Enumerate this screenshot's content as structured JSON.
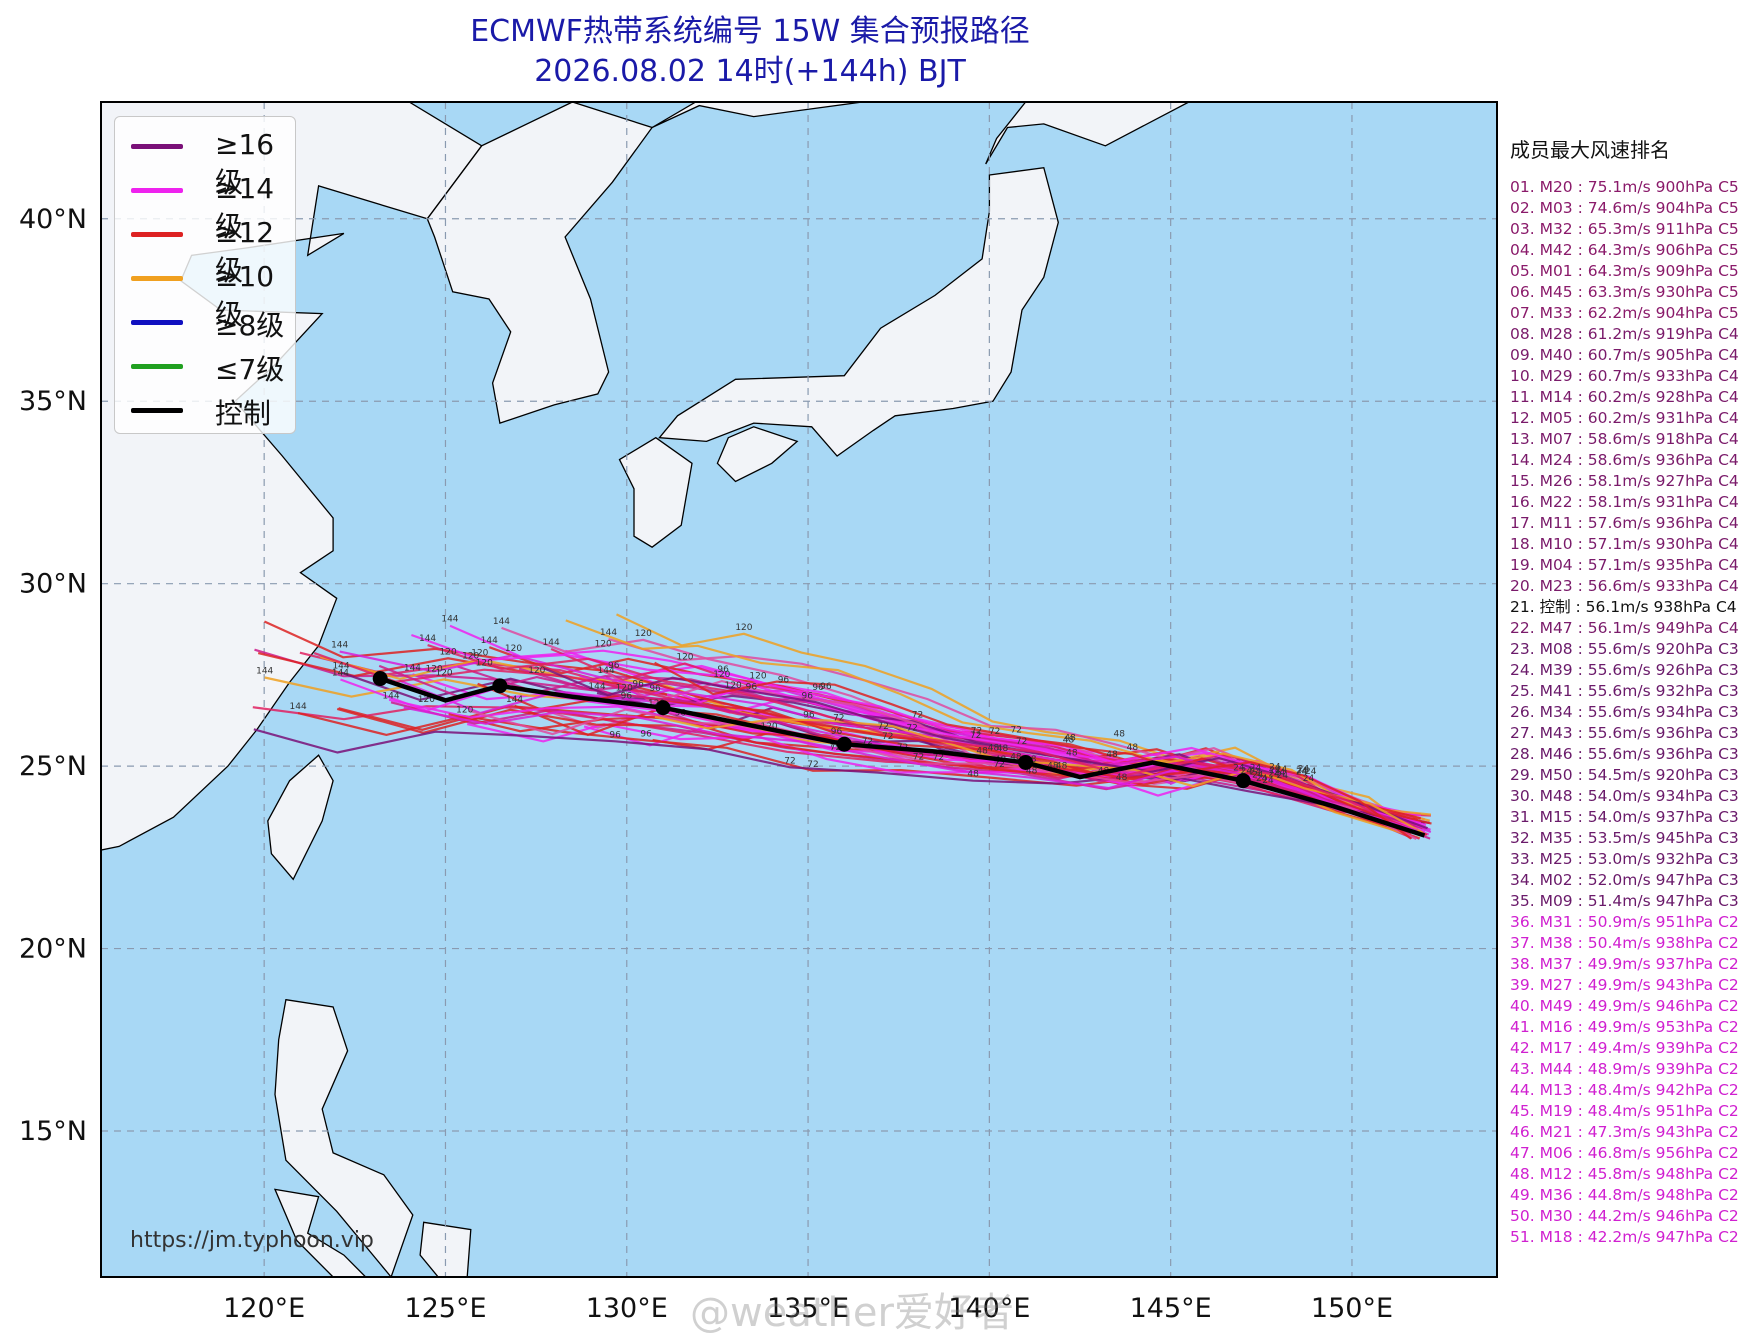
{
  "title": {
    "line1": "ECMWF热带系统编号 15W 集合预报路径",
    "line2": "2026.08.02 14时(+144h) BJT"
  },
  "colors": {
    "sea": "#a8d8f5",
    "land": "#f2f4f8",
    "coast": "#000000",
    "grid": "#8a9ab0",
    "title": "#1a1aa8",
    "c5": "#8a1a6a",
    "c4": "#6a1a6a",
    "c3": "#6a1a6a",
    "c2": "#d020d0"
  },
  "legend": [
    {
      "label": "≥16级",
      "color": "#7a1078"
    },
    {
      "label": "≥14级",
      "color": "#ee22ee"
    },
    {
      "label": "≥12级",
      "color": "#dd2222"
    },
    {
      "label": "≥10级",
      "color": "#f0a020"
    },
    {
      "label": "≥8级",
      "color": "#1010c0"
    },
    {
      "label": "≤7级",
      "color": "#20a020"
    },
    {
      "label": "控制",
      "color": "#000000"
    }
  ],
  "map": {
    "lon_range": [
      115.5,
      154
    ],
    "lat_range": [
      11,
      43.2
    ],
    "lon_ticks": [
      {
        "value": 120,
        "label": "120°E"
      },
      {
        "value": 125,
        "label": "125°E"
      },
      {
        "value": 130,
        "label": "130°E"
      },
      {
        "value": 135,
        "label": "135°E"
      },
      {
        "value": 140,
        "label": "140°E"
      },
      {
        "value": 145,
        "label": "145°E"
      },
      {
        "value": 150,
        "label": "150°E"
      }
    ],
    "lat_ticks": [
      {
        "value": 15,
        "label": "15°N"
      },
      {
        "value": 20,
        "label": "20°N"
      },
      {
        "value": 25,
        "label": "25°N"
      },
      {
        "value": 30,
        "label": "30°N"
      },
      {
        "value": 35,
        "label": "35°N"
      },
      {
        "value": 40,
        "label": "40°N"
      }
    ],
    "grid": true
  },
  "control_track": {
    "name": "控制",
    "points": [
      [
        152,
        23.1
      ],
      [
        149.5,
        23.9
      ],
      [
        147,
        24.6
      ],
      [
        144.5,
        25.1
      ],
      [
        142.5,
        24.7
      ],
      [
        141,
        25.1
      ],
      [
        138.5,
        25.4
      ],
      [
        136,
        25.6
      ],
      [
        133.5,
        26.1
      ],
      [
        131,
        26.6
      ],
      [
        128.5,
        26.9
      ],
      [
        126.5,
        27.2
      ],
      [
        125,
        26.8
      ],
      [
        123.2,
        27.4
      ]
    ],
    "markers": [
      {
        "lon": 147,
        "lat": 24.6,
        "hour": "24"
      },
      {
        "lon": 141,
        "lat": 25.1,
        "hour": "48"
      },
      {
        "lon": 136,
        "lat": 25.6,
        "hour": "72"
      },
      {
        "lon": 131,
        "lat": 26.6,
        "hour": "96"
      },
      {
        "lon": 126.5,
        "lat": 27.2,
        "hour": "120"
      },
      {
        "lon": 123.2,
        "lat": 27.4,
        "hour": "144"
      }
    ]
  },
  "hour_labels": [
    "24",
    "48",
    "72",
    "96",
    "120",
    "144"
  ],
  "rank_panel": {
    "title": "成员最大风速排名",
    "items": [
      {
        "text": "01. M20 : 75.1m/s 900hPa C5",
        "cls": "C5"
      },
      {
        "text": "02. M03 : 74.6m/s 904hPa C5",
        "cls": "C5"
      },
      {
        "text": "03. M32 : 65.3m/s 911hPa C5",
        "cls": "C5"
      },
      {
        "text": "04. M42 : 64.3m/s 906hPa C5",
        "cls": "C5"
      },
      {
        "text": "05. M01 : 64.3m/s 909hPa C5",
        "cls": "C5"
      },
      {
        "text": "06. M45 : 63.3m/s 930hPa C5",
        "cls": "C5"
      },
      {
        "text": "07. M33 : 62.2m/s 904hPa C5",
        "cls": "C5"
      },
      {
        "text": "08. M28 : 61.2m/s 919hPa C4",
        "cls": "C4"
      },
      {
        "text": "09. M40 : 60.7m/s 905hPa C4",
        "cls": "C4"
      },
      {
        "text": "10. M29 : 60.7m/s 933hPa C4",
        "cls": "C4"
      },
      {
        "text": "11. M14 : 60.2m/s 928hPa C4",
        "cls": "C4"
      },
      {
        "text": "12. M05 : 60.2m/s 931hPa C4",
        "cls": "C4"
      },
      {
        "text": "13. M07 : 58.6m/s 918hPa C4",
        "cls": "C4"
      },
      {
        "text": "14. M24 : 58.6m/s 936hPa C4",
        "cls": "C4"
      },
      {
        "text": "15. M26 : 58.1m/s 927hPa C4",
        "cls": "C4"
      },
      {
        "text": "16. M22 : 58.1m/s 931hPa C4",
        "cls": "C4"
      },
      {
        "text": "17. M11 : 57.6m/s 936hPa C4",
        "cls": "C4"
      },
      {
        "text": "18. M10 : 57.1m/s 930hPa C4",
        "cls": "C4"
      },
      {
        "text": "19. M04 : 57.1m/s 935hPa C4",
        "cls": "C4"
      },
      {
        "text": "20. M23 : 56.6m/s 933hPa C4",
        "cls": "C4"
      },
      {
        "text": "21. 控制 : 56.1m/s 938hPa C4",
        "cls": "control"
      },
      {
        "text": "22. M47 : 56.1m/s 949hPa C4",
        "cls": "C4"
      },
      {
        "text": "23. M08 : 55.6m/s 920hPa C3",
        "cls": "C3"
      },
      {
        "text": "24. M39 : 55.6m/s 926hPa C3",
        "cls": "C3"
      },
      {
        "text": "25. M41 : 55.6m/s 932hPa C3",
        "cls": "C3"
      },
      {
        "text": "26. M34 : 55.6m/s 934hPa C3",
        "cls": "C3"
      },
      {
        "text": "27. M43 : 55.6m/s 936hPa C3",
        "cls": "C3"
      },
      {
        "text": "28. M46 : 55.6m/s 936hPa C3",
        "cls": "C3"
      },
      {
        "text": "29. M50 : 54.5m/s 920hPa C3",
        "cls": "C3"
      },
      {
        "text": "30. M48 : 54.0m/s 934hPa C3",
        "cls": "C3"
      },
      {
        "text": "31. M15 : 54.0m/s 937hPa C3",
        "cls": "C3"
      },
      {
        "text": "32. M35 : 53.5m/s 945hPa C3",
        "cls": "C3"
      },
      {
        "text": "33. M25 : 53.0m/s 932hPa C3",
        "cls": "C3"
      },
      {
        "text": "34. M02 : 52.0m/s 947hPa C3",
        "cls": "C3"
      },
      {
        "text": "35. M09 : 51.4m/s 947hPa C3",
        "cls": "C3"
      },
      {
        "text": "36. M31 : 50.9m/s 951hPa C2",
        "cls": "C2"
      },
      {
        "text": "37. M38 : 50.4m/s 938hPa C2",
        "cls": "C2"
      },
      {
        "text": "38. M37 : 49.9m/s 937hPa C2",
        "cls": "C2"
      },
      {
        "text": "39. M27 : 49.9m/s 943hPa C2",
        "cls": "C2"
      },
      {
        "text": "40. M49 : 49.9m/s 946hPa C2",
        "cls": "C2"
      },
      {
        "text": "41. M16 : 49.9m/s 953hPa C2",
        "cls": "C2"
      },
      {
        "text": "42. M17 : 49.4m/s 939hPa C2",
        "cls": "C2"
      },
      {
        "text": "43. M44 : 48.9m/s 939hPa C2",
        "cls": "C2"
      },
      {
        "text": "44. M13 : 48.4m/s 942hPa C2",
        "cls": "C2"
      },
      {
        "text": "45. M19 : 48.4m/s 951hPa C2",
        "cls": "C2"
      },
      {
        "text": "46. M21 : 47.3m/s 943hPa C2",
        "cls": "C2"
      },
      {
        "text": "47. M06 : 46.8m/s 956hPa C2",
        "cls": "C2"
      },
      {
        "text": "48. M12 : 45.8m/s 948hPa C2",
        "cls": "C2"
      },
      {
        "text": "49. M36 : 44.8m/s 948hPa C2",
        "cls": "C2"
      },
      {
        "text": "50. M30 : 44.2m/s 946hPa C2",
        "cls": "C2"
      },
      {
        "text": "51. M18 : 42.2m/s 947hPa C2",
        "cls": "C2"
      }
    ]
  },
  "source_url": "https://jm.typhoon.vip",
  "watermark": "@weather爱好者"
}
